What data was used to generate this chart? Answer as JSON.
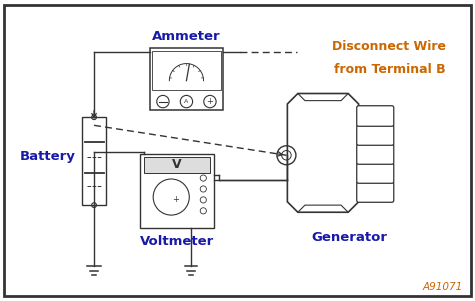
{
  "bg_color": "#ffffff",
  "border_color": "#000000",
  "text_color_blue": "#1a1aaa",
  "text_color_orange": "#cc6600",
  "gray": "#333333",
  "ammeter_label": "Ammeter",
  "battery_label": "Battery",
  "voltmeter_label": "Voltmeter",
  "generator_label": "Generator",
  "disconnect_line1": "Disconnect Wire",
  "disconnect_line2": "from Terminal B",
  "code_label": "A91071",
  "fig_width": 4.75,
  "fig_height": 3.01,
  "dpi": 100,
  "lw": 1.0
}
